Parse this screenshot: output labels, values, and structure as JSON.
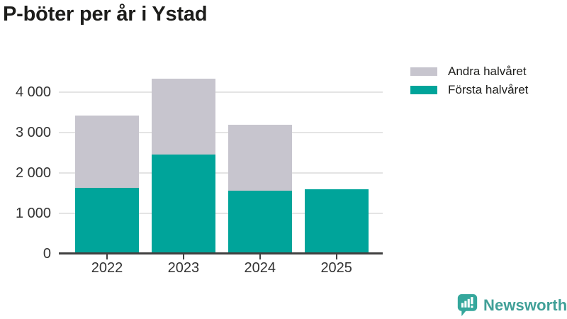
{
  "title": "P-böter per år i Ystad",
  "legend": [
    {
      "label": "Andra halvåret",
      "color": "#c7c5ce"
    },
    {
      "label": "Första halvåret",
      "color": "#00a49a"
    }
  ],
  "chart_data": {
    "type": "bar",
    "stacked": true,
    "title": "P-böter per år i Ystad",
    "categories": [
      "2022",
      "2023",
      "2024",
      "2025"
    ],
    "series": [
      {
        "name": "Första halvåret",
        "color": "#00a49a",
        "values": [
          1630,
          2450,
          1560,
          1600
        ]
      },
      {
        "name": "Andra halvåret",
        "color": "#c7c5ce",
        "values": [
          1790,
          1890,
          1630,
          0
        ]
      }
    ],
    "totals": [
      3420,
      4340,
      3190,
      1600
    ],
    "xlabel": "",
    "ylabel": "",
    "ylim": [
      0,
      4800
    ],
    "yticks": [
      0,
      1000,
      2000,
      3000,
      4000
    ],
    "ytick_labels": [
      "0",
      "1 000",
      "2 000",
      "3 000",
      "4 000"
    ],
    "grid": true,
    "legend_position": "top-right"
  },
  "branding": {
    "logo_text": "Newsworthy",
    "logo_color": "#41a098",
    "icon_color": "#35a79c"
  },
  "colors": {
    "background": "#ffffff",
    "axis": "#404040",
    "gridline": "#e4e4e4",
    "tick_text": "#333333",
    "title_text": "#1d1d1b"
  }
}
